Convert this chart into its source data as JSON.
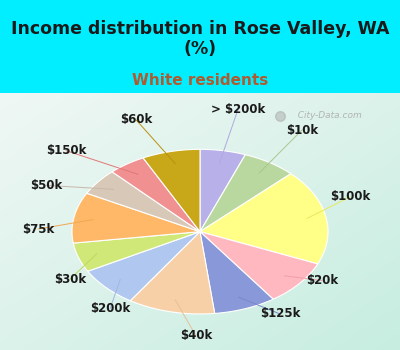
{
  "title": "Income distribution in Rose Valley, WA\n(%)",
  "subtitle": "White residents",
  "title_color": "#1a1a1a",
  "subtitle_color": "#b05a30",
  "bg_cyan": "#00eeff",
  "bg_chart_top": "#f0faf8",
  "bg_chart_bottom": "#c8ede0",
  "labels": [
    "> $200k",
    "$10k",
    "$100k",
    "$20k",
    "$125k",
    "$40k",
    "$200k",
    "$30k",
    "$75k",
    "$50k",
    "$150k",
    "$60k"
  ],
  "values": [
    5.5,
    6.5,
    18.0,
    8.5,
    7.5,
    10.5,
    7.5,
    5.5,
    9.5,
    5.0,
    4.5,
    7.0
  ],
  "colors": [
    "#b8b0e8",
    "#b8d8a0",
    "#ffff88",
    "#ffb8c0",
    "#8898d8",
    "#f8d0a8",
    "#b0c8f0",
    "#d0e878",
    "#ffb868",
    "#d8c8b8",
    "#f09090",
    "#c8a818"
  ],
  "line_colors": [
    "#b0a8e0",
    "#a8c890",
    "#e8e860",
    "#f0a0a8",
    "#7888c8",
    "#e8c098",
    "#a0b8e0",
    "#c0d860",
    "#f0a850",
    "#c8b8a8",
    "#e07878",
    "#b89010"
  ],
  "watermark": "  City-Data.com",
  "startangle": 90,
  "label_fontsize": 8.5,
  "title_fontsize": 12.5,
  "subtitle_fontsize": 11
}
